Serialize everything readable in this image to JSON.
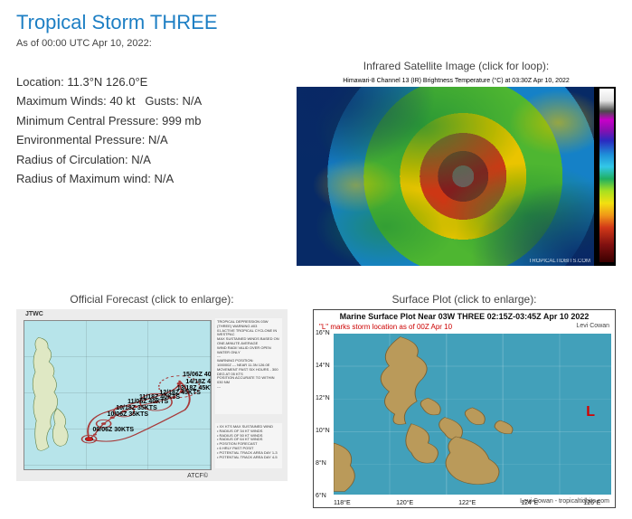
{
  "storm": {
    "title": "Tropical Storm THREE",
    "asof": "As of 00:00 UTC Apr 10, 2022:",
    "location_label": "Location:",
    "location": "11.3°N 126.0°E",
    "maxwind_label": "Maximum Winds:",
    "maxwind": "40 kt",
    "gusts_label": "Gusts:",
    "gusts": "N/A",
    "mincp_label": "Minimum Central Pressure:",
    "mincp": "999 mb",
    "envp_label": "Environmental Pressure:",
    "envp": "N/A",
    "roc_label": "Radius of Circulation:",
    "roc": "N/A",
    "rmw_label": "Radius of Maximum wind:",
    "rmw": "N/A"
  },
  "ir": {
    "caption": "Infrared Satellite Image (click for loop):",
    "banner": "Himawari-8 Channel 13 (IR) Brightness Temperature (°C) at 03:30Z Apr 10, 2022",
    "attribution": "TROPICALTIDBITS.COM",
    "colorbar_stops": [
      "-100",
      "-90",
      "-80",
      "-70",
      "-60",
      "-50",
      "-40",
      "-30",
      "-20",
      "-10",
      "0",
      "10",
      "20",
      "30",
      "40"
    ]
  },
  "forecast": {
    "caption": "Official Forecast (click to enlarge):",
    "jtwc": "JTWC",
    "atcf": "ATCF©",
    "info_lines": [
      "TROPICAL DEPRESSION 03W (THREE) WARNING #03",
      "01 ACTIVE TROPICAL CYCLONE IN WESTPAC",
      "MAX SUSTAINED WINDS BASED ON ONE-MINUTE AVERAGE",
      "WIND RADII VALID OVER OPEN WATER ONLY",
      "---",
      "WARNING POSITION:",
      "100000Z --- NEAR 11.3N 126.0E",
      "MOVEMENT PAST SIX HOURS - 300 DEG AT 05 KTS",
      "POSITION ACCURATE TO WITHIN 030 NM",
      "---"
    ],
    "legend_lines": [
      "XX KTS MAX SUSTAINED WIND",
      "RADIUS OF 34 KT WINDS",
      "RADIUS OF 50 KT WINDS",
      "RADIUS OF 64 KT WINDS",
      "POSITION FORECAST",
      "6 HRLY PAST POSIT",
      "POTENTIAL TRACK AREA DAY 1-3",
      "POTENTIAL TRACK AREA DAY 4-5"
    ],
    "track_points": [
      {
        "label": "09/06Z 30KTS",
        "x": 24,
        "y": 84
      },
      {
        "label": "",
        "x": 28,
        "y": 78
      },
      {
        "label": "",
        "x": 30,
        "y": 72
      },
      {
        "label": "10/06Z 35KTS",
        "x": 34,
        "y": 64
      },
      {
        "label": "10/18Z 35KTS",
        "x": 40,
        "y": 56
      },
      {
        "label": "11/06Z 40KTS",
        "x": 48,
        "y": 48
      },
      {
        "label": "11/18Z 40KTS",
        "x": 56,
        "y": 42
      },
      {
        "label": "12/18Z 45KTS",
        "x": 70,
        "y": 36
      },
      {
        "label": "13/18Z 45KTS",
        "x": 82,
        "y": 30
      },
      {
        "label": "14/18Z 40KTS",
        "x": 88,
        "y": 22
      },
      {
        "label": "15/06Z 40KTS",
        "x": 86,
        "y": 12
      }
    ],
    "cone_color": "#a73a3a",
    "sea_color": "#b7e4ea",
    "land_color": "#dfe8c4"
  },
  "surface": {
    "caption": "Surface Plot (click to enlarge):",
    "title": "Marine Surface Plot Near 03W THREE 02:15Z-03:45Z Apr 10 2022",
    "subtitle": "\"L\" marks storm location as of 00Z Apr 10",
    "author": "Levi Cowan",
    "attribution": "Levi Cowan - tropicaltidbits.com",
    "lat_ticks": [
      "16°N",
      "14°N",
      "12°N",
      "10°N",
      "8°N",
      "6°N"
    ],
    "lon_ticks": [
      "118°E",
      "120°E",
      "122°E",
      "124°E",
      "126°E"
    ],
    "l_marker": "L",
    "sea_color": "#42a0ba",
    "land_color": "#ba9a5a"
  }
}
